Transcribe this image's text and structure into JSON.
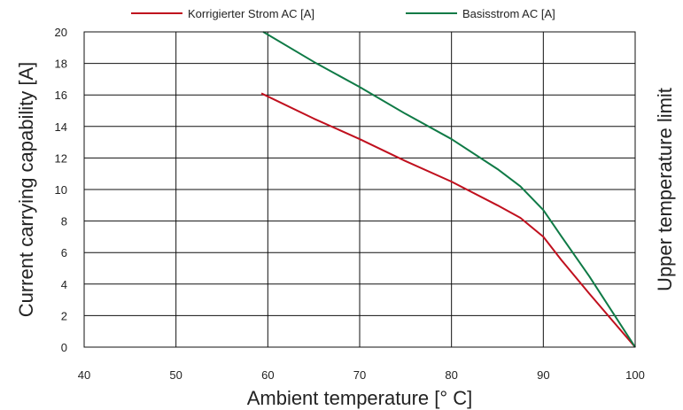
{
  "chart_data": {
    "type": "line",
    "xlabel": "Ambient temperature [° C]",
    "ylabel": "Current carrying capability [A]",
    "y2label": "Upper temperature limit",
    "xlim": [
      40,
      100
    ],
    "ylim": [
      0,
      20
    ],
    "xticks": [
      40,
      50,
      60,
      70,
      80,
      90,
      100
    ],
    "yticks": [
      0,
      2,
      4,
      6,
      8,
      10,
      12,
      14,
      16,
      18,
      20
    ],
    "grid": true,
    "legend_position": "top",
    "series": [
      {
        "name": "Korrigierter Strom AC [A]",
        "color": "#c0101e",
        "x": [
          59.3,
          65,
          70,
          75,
          80,
          85,
          87.5,
          90,
          92,
          95,
          100
        ],
        "y": [
          16.1,
          14.5,
          13.2,
          11.8,
          10.5,
          9.0,
          8.2,
          7.0,
          5.5,
          3.4,
          0.0
        ]
      },
      {
        "name": "Basisstrom AC [A]",
        "color": "#0f7a46",
        "x": [
          59.5,
          65,
          70,
          75,
          80,
          85,
          87.5,
          90,
          92,
          95,
          100
        ],
        "y": [
          20.0,
          18.1,
          16.5,
          14.8,
          13.2,
          11.3,
          10.2,
          8.7,
          7.0,
          4.5,
          0.0
        ]
      }
    ]
  }
}
